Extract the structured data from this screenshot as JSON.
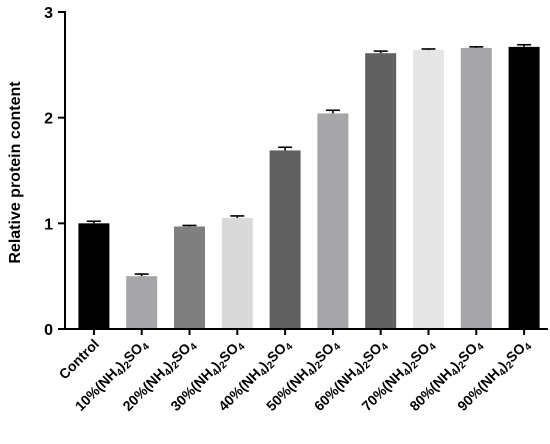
{
  "chart_data": {
    "type": "bar",
    "title": "",
    "xlabel": "",
    "ylabel": "Relative protein content",
    "ylim": [
      0,
      3
    ],
    "yticks": [
      0,
      1,
      2,
      3
    ],
    "grid": false,
    "categories": [
      "Control",
      "10%(NH4)2SO4",
      "20%(NH4)2SO4",
      "30%(NH4)2SO4",
      "40%(NH4)2SO4",
      "50%(NH4)2SO4",
      "60%(NH4)2SO4",
      "70%(NH4)2SO4",
      "80%(NH4)2SO4",
      "90%(NH4)2SO4"
    ],
    "category_labels": [
      {
        "prefix": "Control",
        "sub1": "",
        "mid": "",
        "sub2": "",
        "suffix": ""
      },
      {
        "prefix": "10%(NH",
        "sub1": "4",
        "mid": ")",
        "sub2": "2",
        "suffix": "SO",
        "sub3": "4"
      },
      {
        "prefix": "20%(NH",
        "sub1": "4",
        "mid": ")",
        "sub2": "2",
        "suffix": "SO",
        "sub3": "4"
      },
      {
        "prefix": "30%(NH",
        "sub1": "4",
        "mid": ")",
        "sub2": "2",
        "suffix": "SO",
        "sub3": "4"
      },
      {
        "prefix": "40%(NH",
        "sub1": "4",
        "mid": ")",
        "sub2": "2",
        "suffix": "SO",
        "sub3": "4"
      },
      {
        "prefix": "50%(NH",
        "sub1": "4",
        "mid": ")",
        "sub2": "2",
        "suffix": "SO",
        "sub3": "4"
      },
      {
        "prefix": "60%(NH",
        "sub1": "4",
        "mid": ")",
        "sub2": "2",
        "suffix": "SO",
        "sub3": "4"
      },
      {
        "prefix": "70%(NH",
        "sub1": "4",
        "mid": ")",
        "sub2": "2",
        "suffix": "SO",
        "sub3": "4"
      },
      {
        "prefix": "80%(NH",
        "sub1": "4",
        "mid": ")",
        "sub2": "2",
        "suffix": "SO",
        "sub3": "4"
      },
      {
        "prefix": "90%(NH",
        "sub1": "4",
        "mid": ")",
        "sub2": "2",
        "suffix": "SO",
        "sub3": "4"
      }
    ],
    "values": [
      1.0,
      0.5,
      0.97,
      1.05,
      1.69,
      2.04,
      2.61,
      2.64,
      2.66,
      2.67
    ],
    "errors": [
      0.02,
      0.02,
      0.01,
      0.02,
      0.03,
      0.03,
      0.02,
      0.01,
      0.01,
      0.02
    ],
    "colors": [
      "#000000",
      "#a6a6a8",
      "#7f7f7f",
      "#d9d9d9",
      "#616161",
      "#a6a6a8",
      "#616161",
      "#e5e5e5",
      "#a6a6a8",
      "#000000"
    ]
  }
}
